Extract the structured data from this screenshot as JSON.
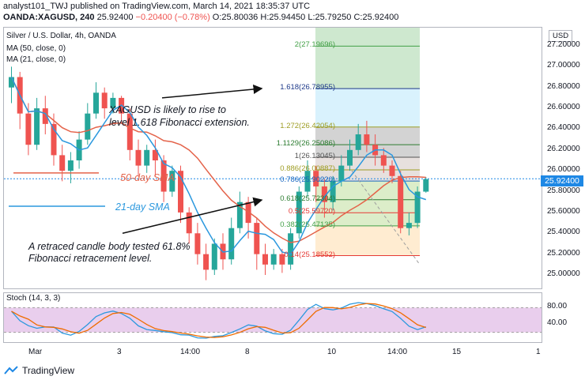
{
  "header": {
    "line1": "analyst101_TWJ published on TradingView.com, March 14, 2021 18:35:37 UTC",
    "symbol": "OANDA:XAGUSD, 240",
    "last": "25.92400",
    "change": "−0.20400 (−0.78%)",
    "open_label": "O:",
    "open": "25.80036",
    "high_label": "H:",
    "high": "25.94450",
    "low_label": "L:",
    "low": "25.79250",
    "close_label": "C:",
    "close": "25.92400"
  },
  "legend": {
    "title": "Silver / U.S. Dollar, 4h, OANDA",
    "ma50": "MA (50, close, 0)",
    "ma21": "MA (21, close, 0)",
    "stoch": "Stoch (14, 3, 3)"
  },
  "currency_badge": "USD",
  "current_price": "25.92400",
  "annotations": {
    "rise": "XAGUSD is likely to rise to",
    "rise2": "level 1.618 Fibonacci extension.",
    "sma50": "50-day SMA",
    "sma21": "21-day SMA",
    "retrace1": "A  retraced candle body tested  61.8%",
    "retrace2": "Fibonacci retracement level."
  },
  "fib_levels": [
    {
      "label": "2(27.19696)",
      "price": 27.19696,
      "color": "#43a047"
    },
    {
      "label": "1.618(26.78955)",
      "price": 26.78955,
      "color": "#1e3a8a"
    },
    {
      "label": "1.272(26.42054)",
      "price": 26.42054,
      "color": "#9e9d24"
    },
    {
      "label": "1.1129(26.25086)",
      "price": 26.25086,
      "color": "#2e7d32"
    },
    {
      "label": "1(26.13045)",
      "price": 26.13045,
      "color": "#555555"
    },
    {
      "label": "0.886(26.00887)",
      "price": 26.00887,
      "color": "#9e9d24"
    },
    {
      "label": "0.786(25.90220)",
      "price": 25.9022,
      "color": "#1565c0"
    },
    {
      "label": "0.618(25.72304)",
      "price": 25.72304,
      "color": "#2e7d32"
    },
    {
      "label": "0.5(25.59720)",
      "price": 25.5972,
      "color": "#e53935"
    },
    {
      "label": "0.382(25.47135)",
      "price": 25.47135,
      "color": "#43a047"
    },
    {
      "label": "0.14(25.18552)",
      "price": 25.18552,
      "color": "#e53935"
    }
  ],
  "price_axis": [
    "27.20000",
    "27.00000",
    "26.80000",
    "26.60000",
    "26.40000",
    "26.20000",
    "26.00000",
    "25.80000",
    "25.60000",
    "25.40000",
    "25.20000",
    "25.00000"
  ],
  "stoch_axis": [
    "80.00",
    "40.00"
  ],
  "time_axis": [
    "Mar",
    "3",
    "14:00",
    "8",
    "10",
    "14:00",
    "15",
    "1"
  ],
  "footer": "TradingView",
  "colors": {
    "up": "#26a69a",
    "down": "#ef5350",
    "ma50": "#e4634a",
    "ma21": "#2b98de",
    "stochK": "#2b98de",
    "stochD": "#ef6c00",
    "accent": "#1e88e5"
  },
  "chart_data": {
    "type": "candlestick",
    "price_range": [
      24.88,
      27.42
    ],
    "candles": [
      {
        "o": 26.8,
        "c": 26.9,
        "h": 27.0,
        "l": 26.65
      },
      {
        "o": 26.9,
        "c": 26.55,
        "h": 26.95,
        "l": 26.4
      },
      {
        "o": 26.55,
        "c": 26.25,
        "h": 26.65,
        "l": 26.15
      },
      {
        "o": 26.25,
        "c": 26.6,
        "h": 26.7,
        "l": 26.2
      },
      {
        "o": 26.6,
        "c": 26.45,
        "h": 26.72,
        "l": 26.35
      },
      {
        "o": 26.45,
        "c": 26.15,
        "h": 26.55,
        "l": 26.05
      },
      {
        "o": 26.15,
        "c": 26.0,
        "h": 26.25,
        "l": 25.9
      },
      {
        "o": 26.0,
        "c": 26.1,
        "h": 26.18,
        "l": 25.88
      },
      {
        "o": 26.1,
        "c": 26.3,
        "h": 26.38,
        "l": 26.02
      },
      {
        "o": 26.3,
        "c": 26.55,
        "h": 26.65,
        "l": 26.25
      },
      {
        "o": 26.55,
        "c": 26.75,
        "h": 26.85,
        "l": 26.5
      },
      {
        "o": 26.75,
        "c": 26.6,
        "h": 26.8,
        "l": 26.5
      },
      {
        "o": 26.6,
        "c": 26.7,
        "h": 26.75,
        "l": 26.55
      },
      {
        "o": 26.7,
        "c": 26.55,
        "h": 26.72,
        "l": 26.45
      },
      {
        "o": 26.55,
        "c": 26.2,
        "h": 26.6,
        "l": 26.1
      },
      {
        "o": 26.2,
        "c": 26.05,
        "h": 26.3,
        "l": 25.95
      },
      {
        "o": 26.05,
        "c": 26.2,
        "h": 26.25,
        "l": 25.98
      },
      {
        "o": 26.2,
        "c": 26.1,
        "h": 26.3,
        "l": 25.95
      },
      {
        "o": 26.1,
        "c": 25.8,
        "h": 26.15,
        "l": 25.7
      },
      {
        "o": 25.8,
        "c": 26.0,
        "h": 26.05,
        "l": 25.75
      },
      {
        "o": 26.0,
        "c": 25.6,
        "h": 26.05,
        "l": 25.5
      },
      {
        "o": 25.6,
        "c": 25.4,
        "h": 25.65,
        "l": 25.3
      },
      {
        "o": 25.4,
        "c": 25.2,
        "h": 25.5,
        "l": 25.1
      },
      {
        "o": 25.2,
        "c": 25.05,
        "h": 25.3,
        "l": 24.95
      },
      {
        "o": 25.05,
        "c": 25.3,
        "h": 25.35,
        "l": 25.0
      },
      {
        "o": 25.3,
        "c": 25.15,
        "h": 25.4,
        "l": 25.05
      },
      {
        "o": 25.15,
        "c": 25.45,
        "h": 25.55,
        "l": 25.1
      },
      {
        "o": 25.45,
        "c": 25.7,
        "h": 25.8,
        "l": 25.4
      },
      {
        "o": 25.7,
        "c": 25.5,
        "h": 25.75,
        "l": 25.35
      },
      {
        "o": 25.5,
        "c": 25.2,
        "h": 25.55,
        "l": 25.05
      },
      {
        "o": 25.2,
        "c": 25.1,
        "h": 25.3,
        "l": 25.0
      },
      {
        "o": 25.1,
        "c": 25.2,
        "h": 25.25,
        "l": 25.05
      },
      {
        "o": 25.2,
        "c": 25.1,
        "h": 25.25,
        "l": 25.02
      },
      {
        "o": 25.1,
        "c": 25.4,
        "h": 25.45,
        "l": 25.05
      },
      {
        "o": 25.4,
        "c": 25.8,
        "h": 25.85,
        "l": 25.35
      },
      {
        "o": 25.8,
        "c": 26.0,
        "h": 26.1,
        "l": 25.75
      },
      {
        "o": 26.0,
        "c": 25.85,
        "h": 26.05,
        "l": 25.7
      },
      {
        "o": 25.85,
        "c": 25.7,
        "h": 25.92,
        "l": 25.55
      },
      {
        "o": 25.7,
        "c": 25.9,
        "h": 25.95,
        "l": 25.62
      },
      {
        "o": 25.9,
        "c": 26.05,
        "h": 26.15,
        "l": 25.85
      },
      {
        "o": 26.05,
        "c": 26.2,
        "h": 26.3,
        "l": 26.0
      },
      {
        "o": 26.2,
        "c": 26.35,
        "h": 26.45,
        "l": 26.15
      },
      {
        "o": 26.35,
        "c": 26.25,
        "h": 26.48,
        "l": 26.18
      },
      {
        "o": 26.25,
        "c": 26.15,
        "h": 26.35,
        "l": 26.05
      },
      {
        "o": 26.15,
        "c": 26.05,
        "h": 26.22,
        "l": 25.98
      },
      {
        "o": 26.05,
        "c": 25.95,
        "h": 26.1,
        "l": 25.88
      },
      {
        "o": 25.95,
        "c": 25.45,
        "h": 26.0,
        "l": 25.4
      },
      {
        "o": 25.45,
        "c": 25.5,
        "h": 25.6,
        "l": 25.38
      },
      {
        "o": 25.5,
        "c": 25.8,
        "h": 25.85,
        "l": 25.45
      },
      {
        "o": 25.8,
        "c": 25.92,
        "h": 25.94,
        "l": 25.79
      }
    ]
  }
}
